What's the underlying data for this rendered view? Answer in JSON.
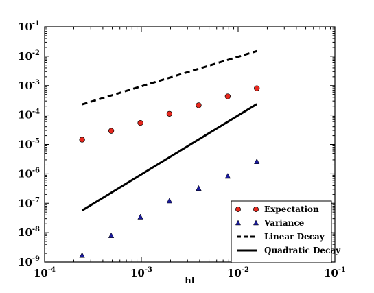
{
  "chart_data": {
    "type": "scatter",
    "xscale": "log",
    "yscale": "log",
    "xlim": [
      0.0001,
      0.1
    ],
    "ylim": [
      1e-09,
      0.1
    ],
    "xlabel": "hl",
    "ylabel": "",
    "grid": false,
    "legend_position": "bottom-right",
    "x_ticks": [
      {
        "base": "10",
        "exp": "-4",
        "value": 0.0001
      },
      {
        "base": "10",
        "exp": "-3",
        "value": 0.001
      },
      {
        "base": "10",
        "exp": "-2",
        "value": 0.01
      },
      {
        "base": "10",
        "exp": "-1",
        "value": 0.1
      }
    ],
    "y_ticks": [
      {
        "base": "10",
        "exp": "-9",
        "value": 1e-09
      },
      {
        "base": "10",
        "exp": "-8",
        "value": 1e-08
      },
      {
        "base": "10",
        "exp": "-7",
        "value": 1e-07
      },
      {
        "base": "10",
        "exp": "-6",
        "value": 1e-06
      },
      {
        "base": "10",
        "exp": "-5",
        "value": 1e-05
      },
      {
        "base": "10",
        "exp": "-4",
        "value": 0.0001
      },
      {
        "base": "10",
        "exp": "-3",
        "value": 0.001
      },
      {
        "base": "10",
        "exp": "-2",
        "value": 0.01
      },
      {
        "base": "10",
        "exp": "-1",
        "value": 0.1
      }
    ],
    "series": [
      {
        "name": "Expectation",
        "kind": "marker",
        "marker": "circle",
        "color": "#e8281e",
        "x": [
          0.000244,
          0.000488,
          0.000977,
          0.00195,
          0.00391,
          0.00781,
          0.0156
        ],
        "y": [
          1.45e-05,
          2.9e-05,
          5.4e-05,
          0.00011,
          0.000215,
          0.00043,
          0.00081
        ]
      },
      {
        "name": "Variance",
        "kind": "marker",
        "marker": "triangle",
        "color": "#1a1a9e",
        "x": [
          0.000244,
          0.000488,
          0.000977,
          0.00195,
          0.00391,
          0.00781,
          0.0156
        ],
        "y": [
          1.7e-09,
          7.9e-09,
          3.4e-08,
          1.2e-07,
          3.2e-07,
          8.3e-07,
          2.6e-06
        ]
      },
      {
        "name": "Linear Decay",
        "kind": "line",
        "dash": "dashed",
        "color": "#000000",
        "x": [
          0.000244,
          0.0156
        ],
        "y": [
          0.00023,
          0.015
        ]
      },
      {
        "name": "Quadratic Decay",
        "kind": "line",
        "dash": "solid",
        "color": "#000000",
        "x": [
          0.000244,
          0.0156
        ],
        "y": [
          5.7e-08,
          0.000235
        ]
      }
    ]
  }
}
